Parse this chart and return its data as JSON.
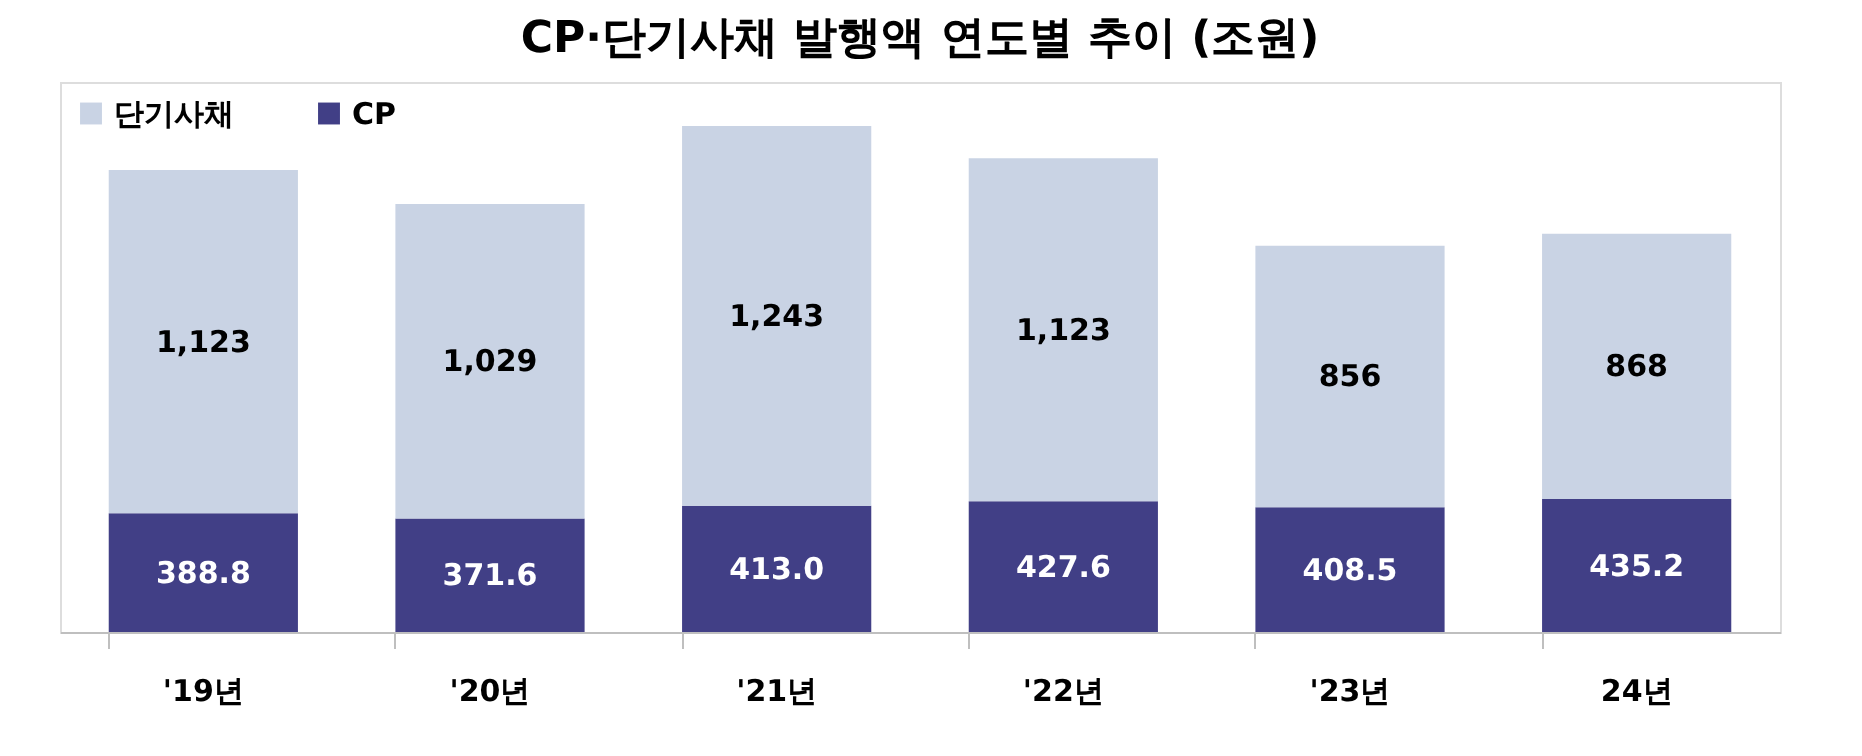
{
  "chart_data": {
    "type": "bar",
    "stacked": true,
    "legend": "top left",
    "title": "CP·단기사채 발행액 연도별 추이 (조원)",
    "categories": [
      "'19년",
      "'20년",
      "'21년",
      "'22년",
      "'23년",
      "24년"
    ],
    "series": [
      {
        "name": "CP",
        "color": "#413f86",
        "values": [
          388.8,
          371.6,
          413.0,
          427.6,
          408.5,
          435.2
        ],
        "value_labels": [
          "388.8",
          "371.6",
          "413.0",
          "427.6",
          "408.5",
          "435.2"
        ]
      },
      {
        "name": "단기사채",
        "color": "#c9d3e4",
        "values": [
          1123,
          1029,
          1243,
          1123,
          856,
          868
        ],
        "value_labels": [
          "1,123",
          "1,029",
          "1,243",
          "1,123",
          "856",
          "868"
        ]
      }
    ]
  }
}
